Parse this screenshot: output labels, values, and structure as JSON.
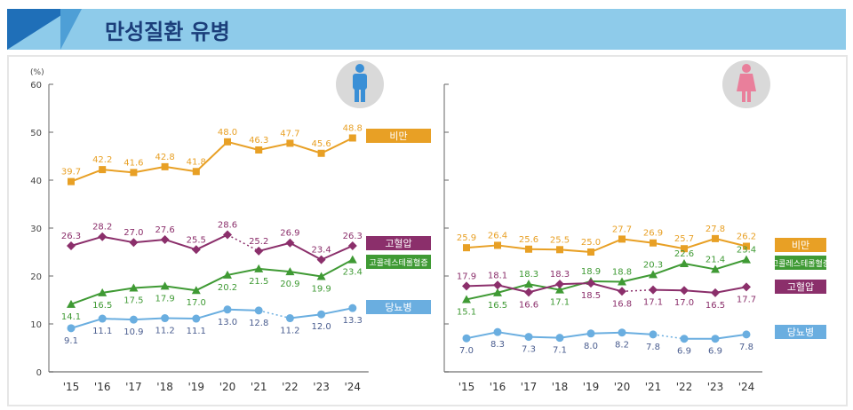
{
  "header": {
    "title": "만성질환 유병"
  },
  "chart_data": [
    {
      "type": "line",
      "panel": "male",
      "icon": "male-person-icon",
      "ylabel": "(%)",
      "ylim": [
        0,
        60
      ],
      "yticks": [
        0,
        10,
        20,
        30,
        40,
        50,
        60
      ],
      "categories": [
        "'15",
        "'16",
        "'17",
        "'18",
        "'19",
        "'20",
        "'21",
        "'22",
        "'23",
        "'24"
      ],
      "series": [
        {
          "name": "비만",
          "color": "#e8a025",
          "marker": "square",
          "values": [
            39.7,
            42.2,
            41.6,
            42.8,
            41.8,
            48.0,
            46.3,
            47.7,
            45.6,
            48.8
          ],
          "dotted_segment": null
        },
        {
          "name": "고혈압",
          "color": "#8b2f6b",
          "marker": "diamond",
          "values": [
            26.3,
            28.2,
            27.0,
            27.6,
            25.5,
            28.6,
            25.2,
            26.9,
            23.4,
            26.3
          ],
          "dotted_segment": [
            "'20",
            "'21"
          ]
        },
        {
          "name": "고콜레스테롤혈증",
          "color": "#3f9a34",
          "marker": "triangle",
          "values": [
            14.1,
            16.5,
            17.5,
            17.9,
            17.0,
            20.2,
            21.5,
            20.9,
            19.9,
            23.4
          ],
          "dotted_segment": null
        },
        {
          "name": "당뇨병",
          "color": "#6aaee0",
          "marker": "circle",
          "values": [
            9.1,
            11.1,
            10.9,
            11.2,
            11.1,
            13.0,
            12.8,
            11.2,
            12.0,
            13.3
          ],
          "dotted_segment": [
            "'21",
            "'22"
          ]
        }
      ]
    },
    {
      "type": "line",
      "panel": "female",
      "icon": "female-person-icon",
      "ylim": [
        0,
        60
      ],
      "categories": [
        "'15",
        "'16",
        "'17",
        "'18",
        "'19",
        "'20",
        "'21",
        "'22",
        "'23",
        "'24"
      ],
      "series": [
        {
          "name": "비만",
          "color": "#e8a025",
          "marker": "square",
          "values": [
            25.9,
            26.4,
            25.6,
            25.5,
            25.0,
            27.7,
            26.9,
            25.7,
            27.8,
            26.2
          ],
          "dotted_segment": null
        },
        {
          "name": "고콜레스테롤혈증",
          "color": "#3f9a34",
          "marker": "triangle",
          "values": [
            15.1,
            16.5,
            18.3,
            17.1,
            18.9,
            18.8,
            20.3,
            22.6,
            21.4,
            23.4
          ],
          "dotted_segment": null
        },
        {
          "name": "고혈압",
          "color": "#8b2f6b",
          "marker": "diamond",
          "values": [
            17.9,
            18.1,
            16.6,
            18.3,
            18.5,
            16.8,
            17.1,
            17.0,
            16.5,
            17.7
          ],
          "dotted_segment": [
            "'20",
            "'21"
          ]
        },
        {
          "name": "당뇨병",
          "color": "#6aaee0",
          "marker": "circle",
          "values": [
            7.0,
            8.3,
            7.3,
            7.1,
            8.0,
            8.2,
            7.8,
            6.9,
            6.9,
            7.8
          ],
          "dotted_segment": [
            "'21",
            "'22"
          ]
        }
      ]
    }
  ]
}
